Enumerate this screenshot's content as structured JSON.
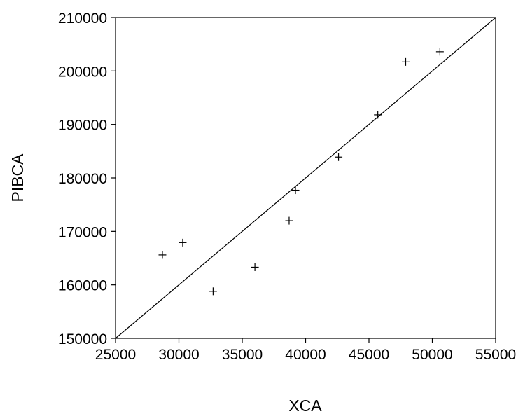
{
  "chart_data": {
    "type": "scatter",
    "xlabel": "XCA",
    "ylabel": "PIBCA",
    "xlim": [
      25000,
      55000
    ],
    "ylim": [
      150000,
      210000
    ],
    "xticks": [
      25000,
      30000,
      35000,
      40000,
      45000,
      50000,
      55000
    ],
    "yticks": [
      150000,
      160000,
      170000,
      180000,
      190000,
      200000,
      210000
    ],
    "xtick_labels": [
      "25000",
      "30000",
      "35000",
      "40000",
      "45000",
      "50000",
      "55000"
    ],
    "ytick_labels": [
      "150000",
      "160000",
      "170000",
      "180000",
      "190000",
      "200000",
      "210000"
    ],
    "points": [
      {
        "x": 28700,
        "y": 165600
      },
      {
        "x": 30300,
        "y": 167900
      },
      {
        "x": 32700,
        "y": 158800
      },
      {
        "x": 36000,
        "y": 163300
      },
      {
        "x": 38700,
        "y": 172000
      },
      {
        "x": 39200,
        "y": 177700
      },
      {
        "x": 42600,
        "y": 183900
      },
      {
        "x": 45700,
        "y": 191800
      },
      {
        "x": 47900,
        "y": 201700
      },
      {
        "x": 50600,
        "y": 203600
      }
    ],
    "reference_line": {
      "from": [
        25000,
        150000
      ],
      "to": [
        55000,
        210000
      ]
    },
    "marker": "plus",
    "grid": false,
    "colors": {
      "ink": "#000000",
      "background": "#ffffff"
    }
  }
}
